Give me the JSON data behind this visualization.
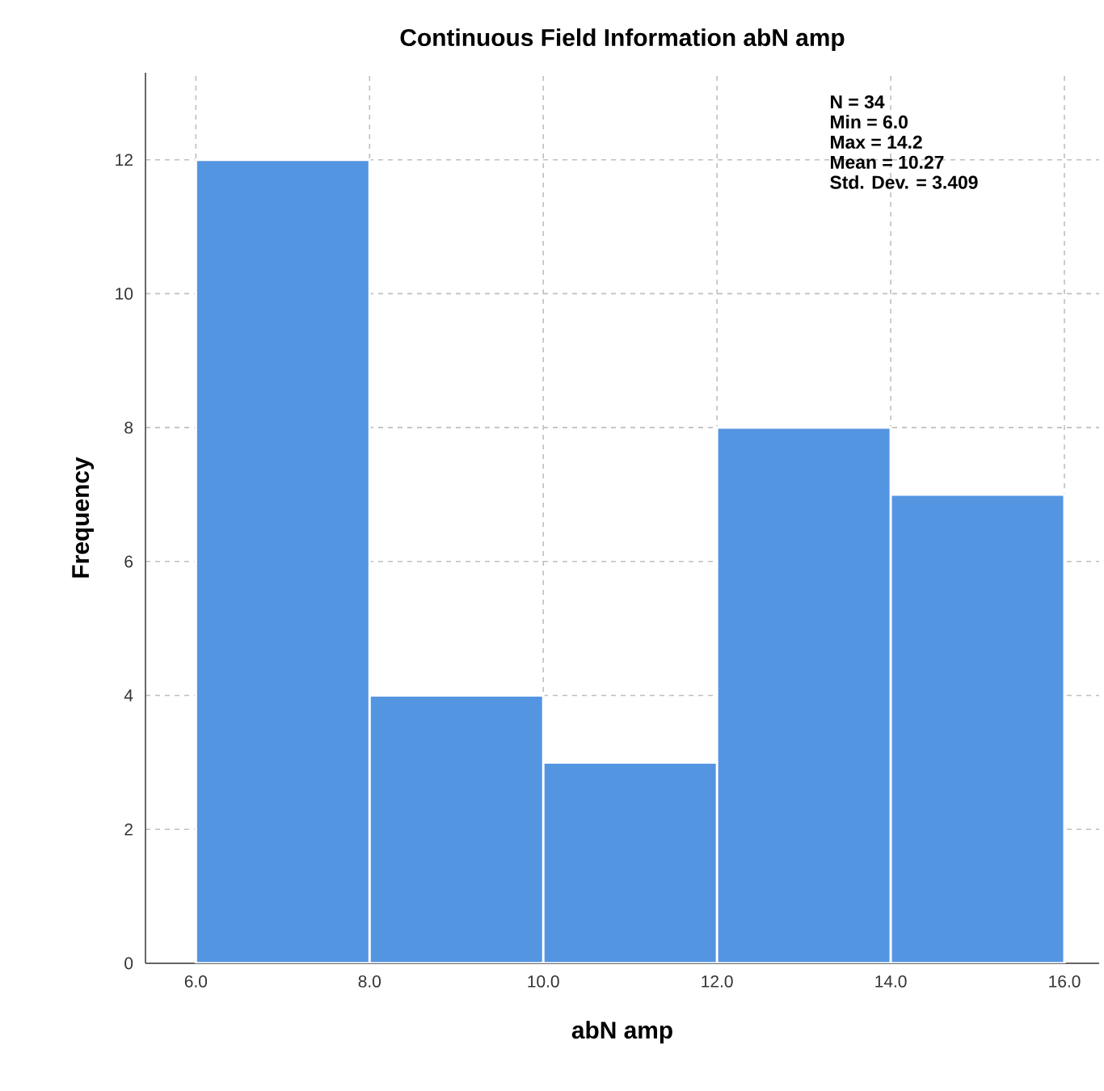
{
  "chart_data": {
    "type": "histogram",
    "title": "Continuous Field Information abN amp",
    "xlabel": "abN amp",
    "ylabel": "Frequency",
    "bins": [
      6,
      8,
      10,
      12,
      14,
      16
    ],
    "values": [
      12,
      4,
      3,
      8,
      7
    ],
    "color": "#5495e2",
    "xlim": [
      5.42,
      16.4
    ],
    "ylim": [
      0,
      13.3
    ],
    "xticks": [
      {
        "value": 6,
        "label": "6.0"
      },
      {
        "value": 8,
        "label": "8.0"
      },
      {
        "value": 10,
        "label": "10.0"
      },
      {
        "value": 12,
        "label": "12.0"
      },
      {
        "value": 14,
        "label": "14.0"
      },
      {
        "value": 16,
        "label": "16.0"
      }
    ],
    "yticks": [
      0,
      2,
      4,
      6,
      8,
      10,
      12
    ],
    "grid": true,
    "annotations": [
      "N = 34",
      "Min = 6.0",
      "Max = 14.2",
      "Mean = 10.27",
      "Std. Dev. = 3.409"
    ]
  }
}
